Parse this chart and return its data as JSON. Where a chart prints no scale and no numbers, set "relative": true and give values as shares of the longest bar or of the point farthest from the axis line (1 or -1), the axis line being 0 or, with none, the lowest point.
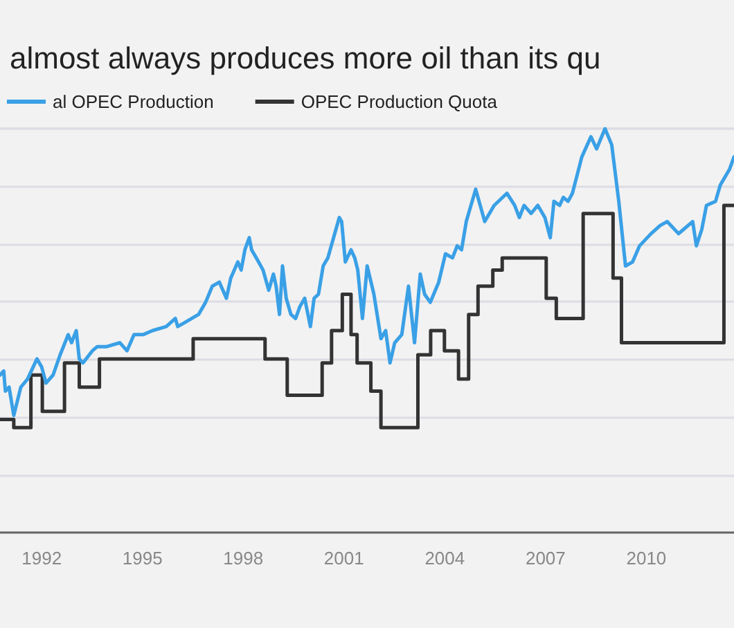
{
  "chart_data": {
    "type": "line",
    "title": "almost always produces more oil than its qu",
    "relative": true,
    "grid": "y",
    "legend": "top left",
    "marker": "none",
    "line_style": "solid",
    "xlim": [
      1990.76,
      2012.61
    ],
    "xticks": [
      1992,
      1995,
      1998,
      2001,
      2004,
      2007,
      2010
    ],
    "series": [
      {
        "name": "al OPEC Production",
        "color": "#3aa0e6",
        "x": [
          1990.76,
          1990.87,
          1990.92,
          1991.03,
          1991.17,
          1991.38,
          1991.58,
          1991.86,
          1992.0,
          1992.13,
          1992.34,
          1992.55,
          1992.79,
          1992.89,
          1993.03,
          1993.12,
          1993.23,
          1993.51,
          1993.65,
          1993.92,
          1994.33,
          1994.54,
          1994.75,
          1995.02,
          1995.3,
          1995.71,
          1995.98,
          1996.05,
          1996.26,
          1996.67,
          1996.88,
          1997.08,
          1997.29,
          1997.5,
          1997.63,
          1997.84,
          1997.94,
          1998.05,
          1998.18,
          1998.25,
          1998.39,
          1998.59,
          1998.76,
          1998.9,
          1998.98,
          1999.08,
          1999.17,
          1999.28,
          1999.42,
          1999.56,
          1999.69,
          1999.83,
          2000.0,
          2000.11,
          2000.24,
          2000.38,
          2000.52,
          2000.86,
          2000.93,
          2001.04,
          2001.21,
          2001.32,
          2001.41,
          2001.55,
          2001.69,
          2001.89,
          2002.1,
          2002.24,
          2002.37,
          2002.51,
          2002.72,
          2002.92,
          2003.1,
          2003.27,
          2003.4,
          2003.57,
          2003.82,
          2004.02,
          2004.23,
          2004.37,
          2004.5,
          2004.64,
          2004.92,
          2005.19,
          2005.47,
          2005.85,
          2006.08,
          2006.22,
          2006.36,
          2006.57,
          2006.77,
          2006.98,
          2007.14,
          2007.25,
          2007.42,
          2007.53,
          2007.67,
          2007.8,
          2008.08,
          2008.35,
          2008.52,
          2008.77,
          2008.97,
          2009.18,
          2009.38,
          2009.59,
          2009.8,
          2010.14,
          2010.41,
          2010.62,
          2010.96,
          2011.1,
          2011.38,
          2011.49,
          2011.65,
          2011.79,
          2012.06,
          2012.2,
          2012.48,
          2012.61
        ],
        "values": [
          0.39,
          0.4,
          0.35,
          0.36,
          0.29,
          0.36,
          0.38,
          0.43,
          0.41,
          0.37,
          0.39,
          0.44,
          0.49,
          0.47,
          0.5,
          0.43,
          0.42,
          0.45,
          0.46,
          0.46,
          0.47,
          0.45,
          0.49,
          0.49,
          0.5,
          0.51,
          0.53,
          0.51,
          0.52,
          0.54,
          0.57,
          0.61,
          0.62,
          0.58,
          0.63,
          0.67,
          0.65,
          0.7,
          0.73,
          0.7,
          0.68,
          0.65,
          0.6,
          0.64,
          0.61,
          0.54,
          0.66,
          0.58,
          0.54,
          0.53,
          0.56,
          0.58,
          0.51,
          0.58,
          0.59,
          0.66,
          0.68,
          0.78,
          0.77,
          0.67,
          0.7,
          0.68,
          0.65,
          0.53,
          0.66,
          0.59,
          0.48,
          0.5,
          0.42,
          0.47,
          0.49,
          0.61,
          0.47,
          0.64,
          0.59,
          0.57,
          0.62,
          0.69,
          0.68,
          0.71,
          0.7,
          0.77,
          0.85,
          0.77,
          0.81,
          0.84,
          0.81,
          0.78,
          0.81,
          0.79,
          0.81,
          0.78,
          0.73,
          0.82,
          0.81,
          0.83,
          0.82,
          0.84,
          0.93,
          0.98,
          0.95,
          1,
          0.96,
          0.82,
          0.66,
          0.67,
          0.71,
          0.74,
          0.76,
          0.77,
          0.74,
          0.75,
          0.77,
          0.71,
          0.75,
          0.81,
          0.82,
          0.86,
          0.9,
          0.93
        ]
      },
      {
        "name": "OPEC Production Quota",
        "color": "#333333",
        "type": "step",
        "x": [
          1990.76,
          1991.17,
          1991.68,
          1992.02,
          1992.68,
          1993.12,
          1993.72,
          1996.51,
          1998.65,
          1999.31,
          2000.35,
          2000.63,
          2000.95,
          2001.21,
          2001.39,
          2001.8,
          2002.1,
          2003.2,
          2003.58,
          2003.99,
          2004.41,
          2004.71,
          2004.99,
          2005.43,
          2005.71,
          2007.02,
          2007.32,
          2008.12,
          2009.01,
          2009.26,
          2012.31,
          2012.61
        ],
        "values": [
          0.28,
          0.26,
          0.39,
          0.3,
          0.42,
          0.36,
          0.43,
          0.48,
          0.43,
          0.34,
          0.42,
          0.5,
          0.59,
          0.49,
          0.42,
          0.35,
          0.26,
          0.44,
          0.5,
          0.45,
          0.38,
          0.54,
          0.61,
          0.65,
          0.68,
          0.58,
          0.53,
          0.79,
          0.63,
          0.47,
          0.81,
          0.81
        ]
      }
    ]
  }
}
